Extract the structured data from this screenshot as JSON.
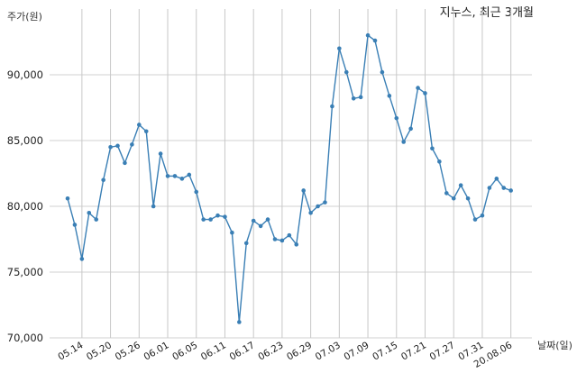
{
  "chart_data": {
    "type": "line",
    "title": "지누스, 최근 3개월",
    "xlabel": "날짜(일)",
    "ylabel": "주가(원)",
    "ylim": [
      70000,
      95000
    ],
    "yticks": [
      70000,
      75000,
      80000,
      85000,
      90000
    ],
    "ytick_labels": [
      "70,000",
      "75,000",
      "80,000",
      "85,000",
      "90,000"
    ],
    "xtick_labels": [
      "05.14",
      "05.20",
      "05.26",
      "06.01",
      "06.05",
      "06.11",
      "06.17",
      "06.23",
      "06.29",
      "07.03",
      "07.09",
      "07.15",
      "07.21",
      "07.27",
      "07.31",
      "20.08.06"
    ],
    "xtick_positions": [
      2,
      6,
      10,
      14,
      18,
      22,
      26,
      30,
      34,
      38,
      42,
      46,
      50,
      54,
      58,
      62
    ],
    "grid": "vertical",
    "color": "#3a7fb5",
    "series": [
      {
        "values": [
          80600,
          78600,
          76000,
          79500,
          79000,
          82000,
          84500,
          84600,
          83300,
          84700,
          86200,
          85700,
          80000,
          84000,
          82300,
          82300,
          82100,
          82400,
          81100,
          79000,
          79000,
          79300,
          79200,
          78000,
          71200,
          77200,
          78900,
          78500,
          79000,
          77500,
          77400,
          77800,
          77100,
          81200,
          79500,
          80000,
          80300,
          87600,
          92000,
          90200,
          88200,
          88300,
          93000,
          92600,
          90200,
          88400,
          86700,
          84900,
          85900,
          89000,
          88600,
          84400,
          83400,
          81000,
          80600,
          81600,
          80600,
          79000,
          79300,
          81400,
          82100,
          81400,
          81200
        ]
      }
    ]
  }
}
